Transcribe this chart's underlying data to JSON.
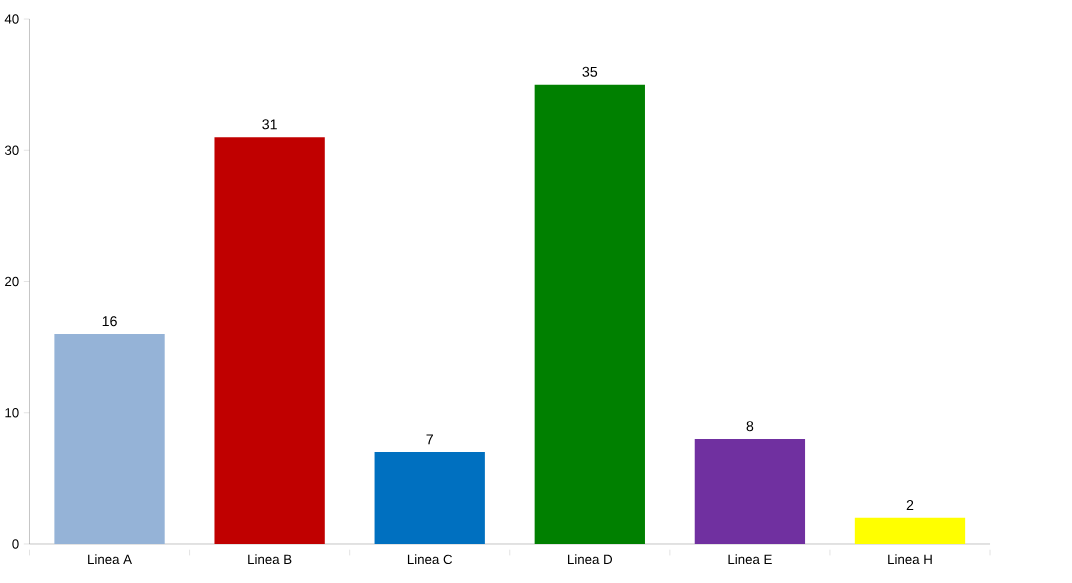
{
  "chart_data": {
    "type": "bar",
    "categories": [
      "Linea A",
      "Linea B",
      "Linea C",
      "Linea D",
      "Linea E",
      "Linea H"
    ],
    "values": [
      16,
      31,
      7,
      35,
      8,
      2
    ],
    "colors": [
      "#95b3d7",
      "#c00000",
      "#0070c0",
      "#008000",
      "#7030a0",
      "#ffff00"
    ],
    "ylim": [
      0,
      40
    ],
    "yticks": [
      0,
      10,
      20,
      30,
      40
    ],
    "data_labels": true
  }
}
